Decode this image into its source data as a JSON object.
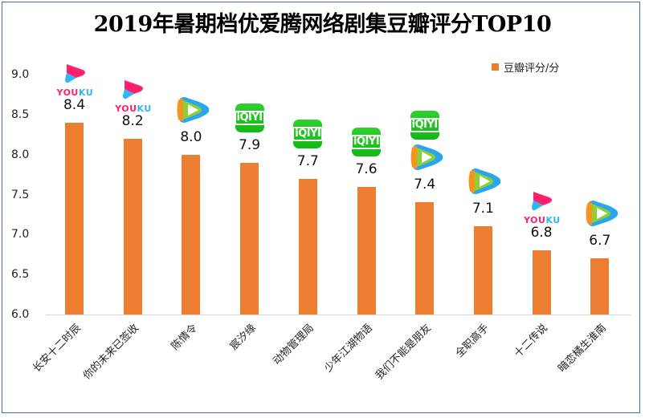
{
  "title": "2019年暑期档优爱腾网络剧集豆瓣评分TOP10",
  "legend": {
    "label": "豆瓣评分/分",
    "color": "#ED7D31"
  },
  "colors": {
    "bar": "#ED7D31",
    "border": "#41719C",
    "axis": "#D9D9D9",
    "iqiyi": "#1FC41F",
    "youku_pink": "#FF1F6E",
    "youku_blue": "#2FB6F5"
  },
  "y_axis": {
    "ticks": [
      "9.0",
      "8.5",
      "8.0",
      "7.5",
      "7.0",
      "6.5",
      "6.0"
    ]
  },
  "chart_data": {
    "type": "bar",
    "title": "2019年暑期档优爱腾网络剧集豆瓣评分TOP10",
    "xlabel": "",
    "ylabel": "",
    "ylim": [
      6.0,
      9.0
    ],
    "ytick_step": 0.5,
    "grid": false,
    "legend_position": "top-right",
    "categories": [
      "长安十二时辰",
      "你的未来已签收",
      "陈情令",
      "宸汐缘",
      "动物管理局",
      "少年江湖物语",
      "我们不能是朋友",
      "全职高手",
      "十二传说",
      "暗恋橘生淮南"
    ],
    "series": [
      {
        "name": "豆瓣评分/分",
        "values": [
          8.4,
          8.2,
          8.0,
          7.9,
          7.7,
          7.6,
          7.4,
          7.1,
          6.8,
          6.7
        ]
      }
    ],
    "data_labels": [
      "8.4",
      "8.2",
      "8.0",
      "7.9",
      "7.7",
      "7.6",
      "7.4",
      "7.1",
      "6.8",
      "6.7"
    ],
    "platform_annotations": [
      [
        "youku"
      ],
      [
        "youku"
      ],
      [
        "tencent"
      ],
      [
        "iqiyi"
      ],
      [
        "iqiyi"
      ],
      [
        "iqiyi"
      ],
      [
        "iqiyi",
        "tencent"
      ],
      [
        "tencent"
      ],
      [
        "youku"
      ],
      [
        "tencent"
      ]
    ]
  },
  "logos": {
    "youku_text_a": "YOU",
    "youku_text_b": "KU",
    "iqiyi_text": "iQIYI"
  }
}
